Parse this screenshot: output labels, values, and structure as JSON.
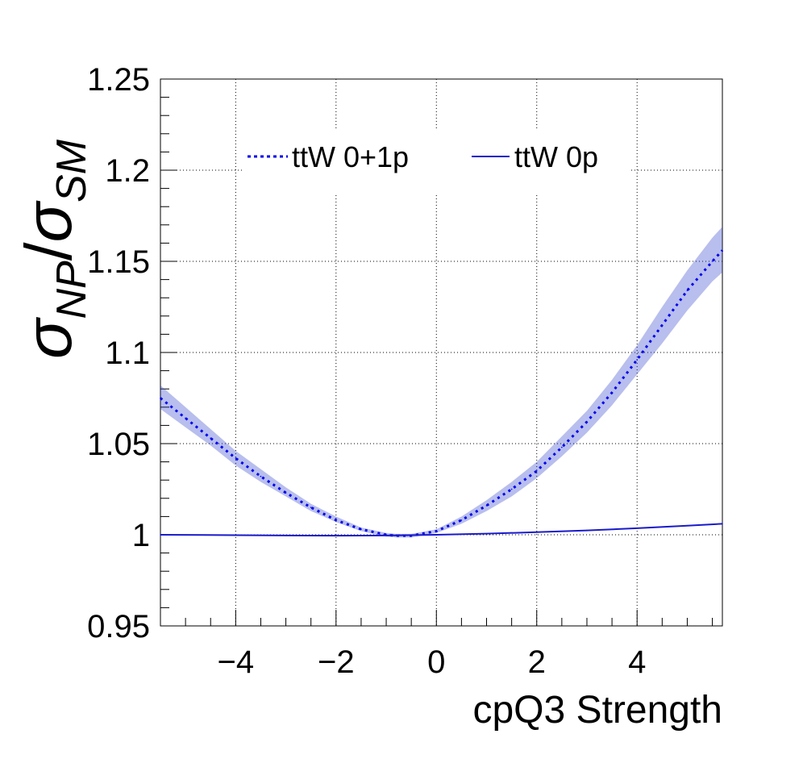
{
  "chart_data": {
    "type": "line",
    "xlabel": "cpQ3 Strength",
    "ylabel": {
      "symbol": "σ",
      "numerator_subscript": "NP",
      "slash": "/",
      "denominator_subscript": "SM"
    },
    "xlim": [
      -5.5,
      5.7
    ],
    "ylim": [
      0.95,
      1.25
    ],
    "x_ticks": [
      -4,
      -2,
      0,
      2,
      4
    ],
    "x_tick_labels": [
      "−4",
      "−2",
      "0",
      "2",
      "4"
    ],
    "y_ticks": [
      0.95,
      1,
      1.05,
      1.1,
      1.15,
      1.2,
      1.25
    ],
    "y_tick_labels": [
      "0.95",
      "1",
      "1.05",
      "1.1",
      "1.15",
      "1.2",
      "1.25"
    ],
    "grid": true,
    "legend_position": "top",
    "series": [
      {
        "name": "ttW 0+1p",
        "style": "dotted",
        "color": "#0000ee",
        "band_color": "#3344cc",
        "x": [
          -5.5,
          -5,
          -4.5,
          -4,
          -3.5,
          -3,
          -2.5,
          -2,
          -1.5,
          -1,
          -0.8,
          -0.5,
          0,
          0.5,
          1,
          1.5,
          2,
          2.5,
          3,
          3.5,
          4,
          4.5,
          5,
          5.5,
          5.7
        ],
        "values": [
          1.075,
          1.064,
          1.053,
          1.042,
          1.032,
          1.023,
          1.015,
          1.008,
          1.003,
          1.0,
          0.9995,
          0.9995,
          1.002,
          1.008,
          1.016,
          1.025,
          1.035,
          1.048,
          1.062,
          1.078,
          1.096,
          1.115,
          1.134,
          1.15,
          1.156
        ],
        "band_low": [
          1.069,
          1.059,
          1.049,
          1.038,
          1.029,
          1.021,
          1.013,
          1.007,
          1.002,
          0.999,
          0.9985,
          0.9985,
          1.001,
          1.006,
          1.013,
          1.021,
          1.031,
          1.043,
          1.056,
          1.071,
          1.088,
          1.105,
          1.123,
          1.139,
          1.144
        ],
        "band_high": [
          1.082,
          1.07,
          1.058,
          1.046,
          1.036,
          1.026,
          1.017,
          1.01,
          1.004,
          1.001,
          1.0005,
          1.0005,
          1.003,
          1.01,
          1.019,
          1.029,
          1.04,
          1.054,
          1.068,
          1.085,
          1.104,
          1.125,
          1.145,
          1.163,
          1.169
        ]
      },
      {
        "name": "ttW 0p",
        "style": "solid",
        "color": "#1a1acc",
        "x": [
          -5.5,
          -4,
          -3,
          -2,
          -1,
          0,
          1,
          2,
          3,
          4,
          5,
          5.7
        ],
        "values": [
          1.0,
          0.9998,
          0.9996,
          0.9995,
          0.9996,
          1.0,
          1.0006,
          1.0014,
          1.0024,
          1.0036,
          1.005,
          1.006
        ]
      }
    ]
  }
}
